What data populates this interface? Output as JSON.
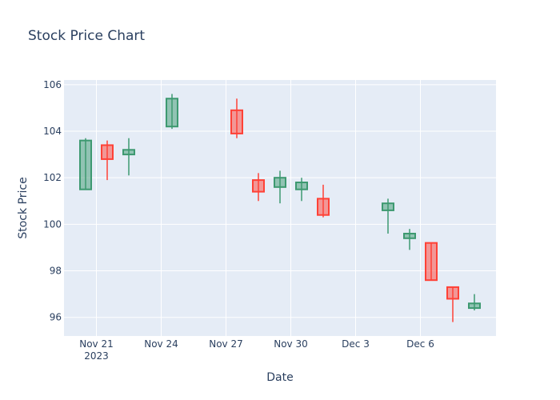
{
  "chart_data": {
    "type": "candlestick",
    "title": "Stock Price Chart",
    "xlabel": "Date",
    "ylabel": "Stock Price",
    "ylim": [
      95.2,
      106.2
    ],
    "y_ticks": [
      96,
      98,
      100,
      102,
      104,
      106
    ],
    "x_ticks": [
      {
        "date": "2023-11-21",
        "label": "Nov 21",
        "sublabel": "2023"
      },
      {
        "date": "2023-11-24",
        "label": "Nov 24",
        "sublabel": ""
      },
      {
        "date": "2023-11-27",
        "label": "Nov 27",
        "sublabel": ""
      },
      {
        "date": "2023-11-30",
        "label": "Nov 30",
        "sublabel": ""
      },
      {
        "date": "2023-12-03",
        "label": "Dec 3",
        "sublabel": ""
      },
      {
        "date": "2023-12-06",
        "label": "Dec 6",
        "sublabel": ""
      }
    ],
    "x_range": [
      "2023-11-19T12:00",
      "2023-12-09T12:00"
    ],
    "grid": true,
    "colors": {
      "increasing": "#3d9970",
      "increasing_fill": "rgba(61,153,112,0.5)",
      "decreasing": "#ff4136",
      "decreasing_fill": "rgba(255,65,54,0.5)",
      "plot_bg": "#e5ecf6",
      "grid": "#ffffff",
      "text": "#2a3f5f"
    },
    "candles": [
      {
        "date": "2023-11-20",
        "open": 101.5,
        "high": 103.7,
        "low": 101.5,
        "close": 103.6
      },
      {
        "date": "2023-11-21",
        "open": 103.4,
        "high": 103.6,
        "low": 101.9,
        "close": 102.8
      },
      {
        "date": "2023-11-22",
        "open": 103.0,
        "high": 103.7,
        "low": 102.1,
        "close": 103.2
      },
      {
        "date": "2023-11-24",
        "open": 104.2,
        "high": 105.6,
        "low": 104.1,
        "close": 105.4
      },
      {
        "date": "2023-11-27",
        "open": 104.9,
        "high": 105.4,
        "low": 103.7,
        "close": 103.9
      },
      {
        "date": "2023-11-28",
        "open": 101.9,
        "high": 102.2,
        "low": 101.0,
        "close": 101.4
      },
      {
        "date": "2023-11-29",
        "open": 101.6,
        "high": 102.3,
        "low": 100.9,
        "close": 102.0
      },
      {
        "date": "2023-11-30",
        "open": 101.5,
        "high": 102.0,
        "low": 101.0,
        "close": 101.8
      },
      {
        "date": "2023-12-01",
        "open": 101.1,
        "high": 101.7,
        "low": 100.3,
        "close": 100.4
      },
      {
        "date": "2023-12-04",
        "open": 100.6,
        "high": 101.1,
        "low": 99.6,
        "close": 100.9
      },
      {
        "date": "2023-12-05",
        "open": 99.4,
        "high": 99.8,
        "low": 98.9,
        "close": 99.6
      },
      {
        "date": "2023-12-06",
        "open": 99.2,
        "high": 99.2,
        "low": 97.6,
        "close": 97.6
      },
      {
        "date": "2023-12-07",
        "open": 97.3,
        "high": 97.3,
        "low": 95.8,
        "close": 96.8
      },
      {
        "date": "2023-12-08",
        "open": 96.4,
        "high": 97.0,
        "low": 96.3,
        "close": 96.6
      }
    ]
  }
}
